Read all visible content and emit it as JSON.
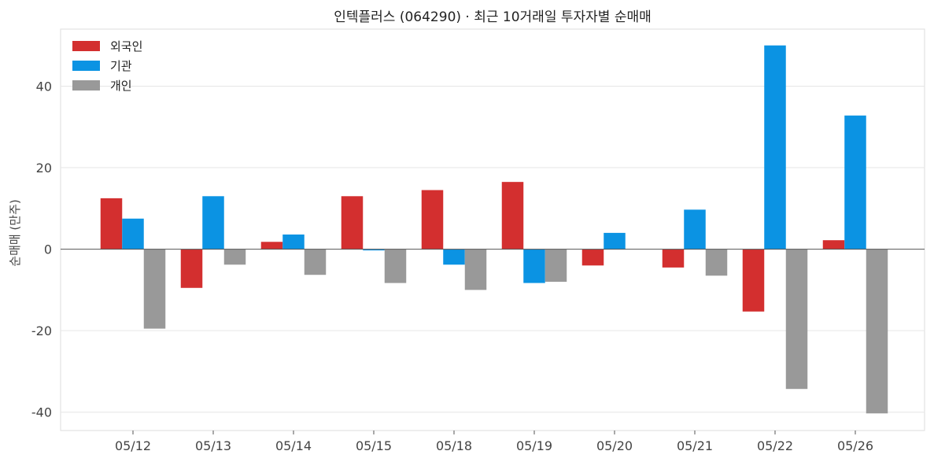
{
  "chart_data": {
    "type": "bar",
    "title": "인텍플러스 (064290) · 최근 10거래일 투자자별 순매매",
    "xlabel": "",
    "ylabel": "순매매 (만주)",
    "categories": [
      "05/12",
      "05/13",
      "05/14",
      "05/15",
      "05/18",
      "05/19",
      "05/20",
      "05/21",
      "05/22",
      "05/26"
    ],
    "series": [
      {
        "name": "외국인",
        "color": "#d32f2f",
        "values": [
          12.5,
          -9.5,
          1.8,
          13.0,
          14.5,
          16.5,
          -4.0,
          -4.5,
          -15.3,
          2.2
        ]
      },
      {
        "name": "기관",
        "color": "#0b93e3",
        "values": [
          7.5,
          13.0,
          3.6,
          -0.3,
          -3.8,
          -8.3,
          4.0,
          9.7,
          50.0,
          32.8
        ]
      },
      {
        "name": "개인",
        "color": "#999999",
        "values": [
          -19.5,
          -3.8,
          -6.3,
          -8.3,
          -10.0,
          -8.0,
          0,
          -6.5,
          -34.3,
          -40.3
        ]
      }
    ],
    "ylim": [
      -44.5,
      54.0
    ],
    "yticks": [
      -40,
      -20,
      0,
      20,
      40
    ],
    "grid": true,
    "legend_position": "top-left"
  }
}
